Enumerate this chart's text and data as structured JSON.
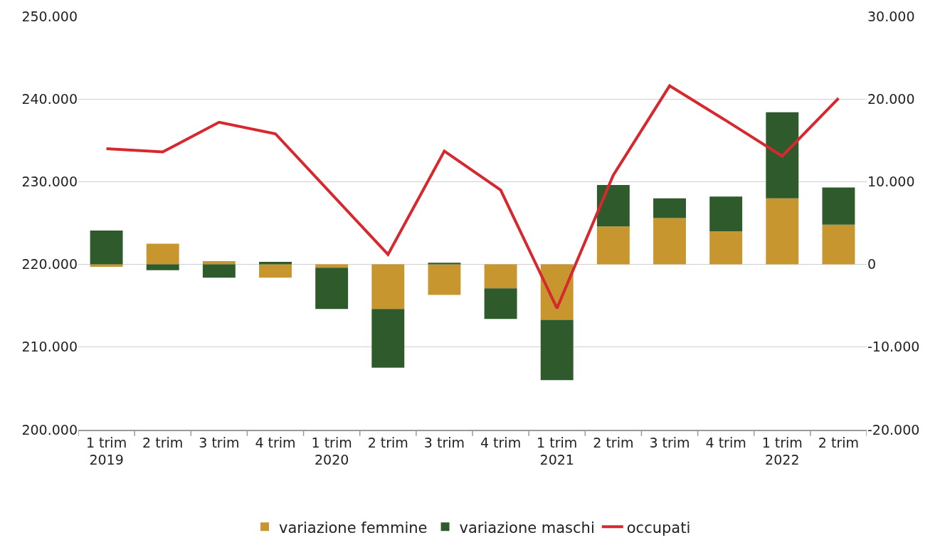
{
  "chart_data": {
    "type": "bar",
    "stacked": true,
    "categories": [
      "1 trim\n2019",
      "2 trim",
      "3 trim",
      "4 trim",
      "1 trim\n2020",
      "2 trim",
      "3 trim",
      "4 trim",
      "1 trim\n2021",
      "2 trim",
      "3 trim",
      "4 trim",
      "1 trim\n2022",
      "2 trim"
    ],
    "series": [
      {
        "name": "variazione femmine",
        "color": "#c8962e",
        "axis": "y2",
        "values": [
          -300,
          2500,
          400,
          -1600,
          -400,
          -5400,
          -3700,
          -2900,
          -6700,
          4600,
          5600,
          4000,
          8000,
          4800
        ]
      },
      {
        "name": "variazione maschi",
        "color": "#2e5a2c",
        "axis": "y2",
        "values": [
          4100,
          -700,
          -1600,
          300,
          -5000,
          -7100,
          200,
          -3700,
          -7300,
          5000,
          2400,
          4200,
          10400,
          4500
        ]
      },
      {
        "name": "occupati",
        "type": "line",
        "color": "#d7282f",
        "values": [
          234000,
          233600,
          237200,
          235800,
          228500,
          221200,
          233700,
          229000,
          214700,
          230800,
          241600,
          237400,
          233100,
          240100
        ]
      }
    ],
    "ylim": [
      200000,
      250000
    ],
    "yticks": [
      {
        "value": 200000,
        "label": "200.000"
      },
      {
        "value": 210000,
        "label": "210.000"
      },
      {
        "value": 220000,
        "label": "220.000"
      },
      {
        "value": 230000,
        "label": "230.000"
      },
      {
        "value": 240000,
        "label": "240.000"
      },
      {
        "value": 250000,
        "label": "250.000"
      }
    ],
    "y2lim": [
      -20000,
      30000
    ],
    "y2ticks": [
      {
        "value": -20000,
        "label": "-20.000"
      },
      {
        "value": -10000,
        "label": "-10.000"
      },
      0,
      {
        "value": 10000,
        "label": "10.000"
      },
      {
        "value": 20000,
        "label": "20.000"
      },
      {
        "value": 30000,
        "label": "30.000"
      }
    ],
    "grid": "y",
    "legend": "bottom",
    "marker": "none",
    "line_style": "solid"
  }
}
